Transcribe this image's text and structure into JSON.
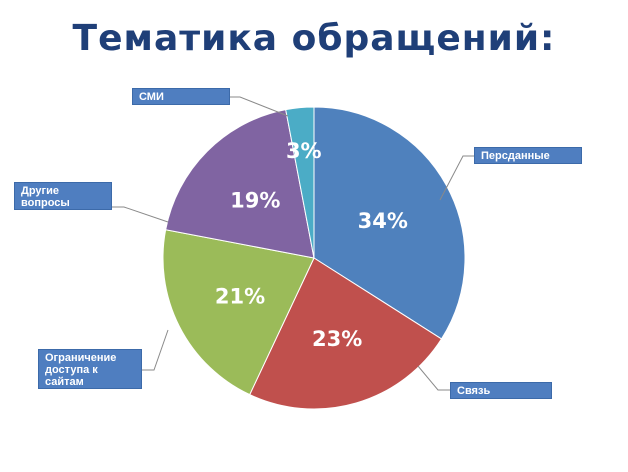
{
  "chart_data": {
    "type": "pie",
    "title": "Тематика обращений:",
    "slices": [
      {
        "label": "Персданные",
        "value": 34,
        "value_label": "34%",
        "color": "#4f81bd"
      },
      {
        "label": "Связь",
        "value": 23,
        "value_label": "23%",
        "color": "#c0504d"
      },
      {
        "label": "Ограничение\nдоступа к\nсайтам",
        "value": 21,
        "value_label": "21%",
        "color": "#9bbb59"
      },
      {
        "label": "Другие\nвопросы",
        "value": 19,
        "value_label": "19%",
        "color": "#8064a2"
      },
      {
        "label": "СМИ",
        "value": 3,
        "value_label": "3%",
        "color": "#4bacc6"
      }
    ]
  }
}
